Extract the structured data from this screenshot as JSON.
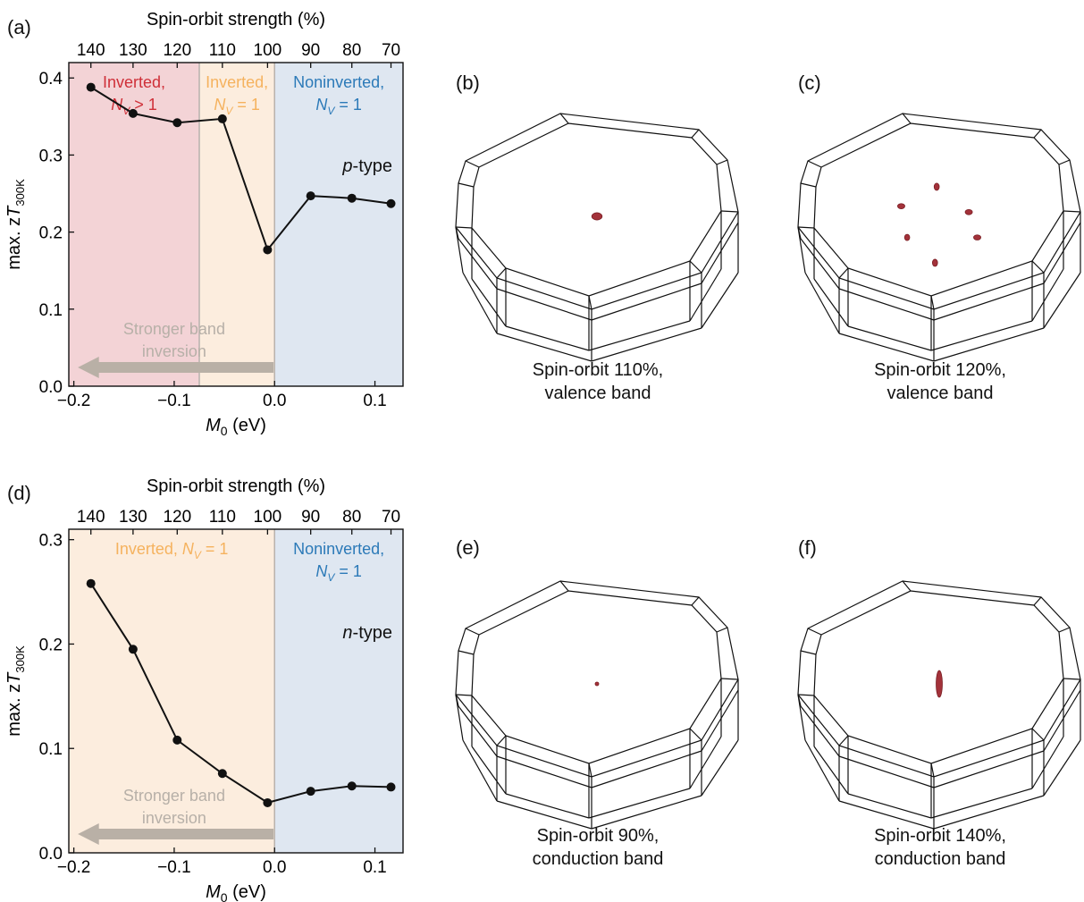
{
  "panel_labels": {
    "a": "(a)",
    "b": "(b)",
    "c": "(c)",
    "d": "(d)",
    "e": "(e)",
    "f": "(f)"
  },
  "chart_data": [
    {
      "panel": "(a)",
      "type": "line",
      "xlabel": "M",
      "xlabel_sub": "0",
      "xlabel_unit": " (eV)",
      "ylabel": "max. zT",
      "ylabel_sub": "300K",
      "top_xlabel": "Spin-orbit strength (%)",
      "top_ticks": [
        "140",
        "130",
        "120",
        "110",
        "100",
        "90",
        "80",
        "70"
      ],
      "x_ticks": [
        "−0.2",
        "−0.1",
        "0.0",
        "0.1"
      ],
      "y_ticks": [
        "0.0",
        "0.1",
        "0.2",
        "0.3",
        "0.4"
      ],
      "xlim": [
        -0.205,
        0.128
      ],
      "ylim": [
        0,
        0.42
      ],
      "series": [
        {
          "x": [
            -0.183,
            -0.141,
            -0.097,
            -0.052,
            -0.007,
            0.036,
            0.077,
            0.116
          ],
          "y": [
            0.388,
            0.354,
            0.342,
            0.347,
            0.177,
            0.247,
            0.244,
            0.237
          ]
        }
      ],
      "regions": [
        {
          "x0": -0.205,
          "x1": -0.075,
          "color": "#f3d3d6",
          "line1": "Inverted,",
          "sym": "N",
          "sub": "V",
          "rest": " > 1",
          "text_color": "#cf2f38"
        },
        {
          "x0": -0.075,
          "x1": 0.0,
          "color": "#fcedde",
          "line1": "Inverted,",
          "sym": "N",
          "sub": "V",
          "rest": " = 1",
          "text_color": "#f5b25e"
        },
        {
          "x0": 0.0,
          "x1": 0.128,
          "color": "#dfe7f1",
          "line1": "Noninverted,",
          "sym": "N",
          "sub": "V",
          "rest": " = 1",
          "text_color": "#2c7ab8"
        }
      ],
      "carrier_italic": "p",
      "carrier_rest": "-type",
      "arrow_text": [
        "Stronger band",
        "inversion"
      ]
    },
    {
      "panel": "(d)",
      "type": "line",
      "xlabel": "M",
      "xlabel_sub": "0",
      "xlabel_unit": " (eV)",
      "ylabel": "max. zT",
      "ylabel_sub": "300K",
      "top_xlabel": "Spin-orbit strength (%)",
      "top_ticks": [
        "140",
        "130",
        "120",
        "110",
        "100",
        "90",
        "80",
        "70"
      ],
      "x_ticks": [
        "−0.2",
        "−0.1",
        "0.0",
        "0.1"
      ],
      "y_ticks": [
        "0.0",
        "0.1",
        "0.2",
        "0.3"
      ],
      "xlim": [
        -0.205,
        0.128
      ],
      "ylim": [
        0,
        0.31
      ],
      "series": [
        {
          "x": [
            -0.183,
            -0.141,
            -0.097,
            -0.052,
            -0.007,
            0.036,
            0.077,
            0.116
          ],
          "y": [
            0.258,
            0.195,
            0.108,
            0.076,
            0.048,
            0.059,
            0.064,
            0.063
          ]
        }
      ],
      "regions": [
        {
          "x0": -0.205,
          "x1": 0.0,
          "color": "#fcedde",
          "line1": "Inverted, ",
          "sym": "N",
          "sub": "V",
          "rest": " = 1",
          "text_color": "#f5b25e",
          "one_line": true
        },
        {
          "x0": 0.0,
          "x1": 0.128,
          "color": "#dfe7f1",
          "line1": "Noninverted,",
          "sym": "N",
          "sub": "V",
          "rest": " = 1",
          "text_color": "#2c7ab8"
        }
      ],
      "carrier_italic": "n",
      "carrier_rest": "-type",
      "arrow_text": [
        "Stronger band",
        "inversion"
      ]
    }
  ],
  "pockets": {
    "b": {
      "caption": [
        "Spin-orbit 110%,",
        "valence band"
      ],
      "blobs": [
        [
          0,
          0,
          0.1,
          0.07
        ]
      ]
    },
    "c": {
      "caption": [
        "Spin-orbit 120%,",
        "valence band"
      ],
      "blobs": [
        [
          -0.45,
          -0.12,
          0.07,
          0.05
        ],
        [
          -0.03,
          -0.35,
          0.05,
          0.07
        ],
        [
          0.35,
          -0.05,
          0.07,
          0.05
        ],
        [
          0.45,
          0.25,
          0.07,
          0.05
        ],
        [
          -0.05,
          0.55,
          0.05,
          0.07
        ],
        [
          -0.38,
          0.25,
          0.05,
          0.06
        ]
      ]
    },
    "e": {
      "caption": [
        "Spin-orbit 90%,",
        "conduction band"
      ],
      "blobs": [
        [
          0,
          0,
          0.035,
          0.035
        ]
      ]
    },
    "f": {
      "caption": [
        "Spin-orbit 140%,",
        "conduction band"
      ],
      "blobs": [
        [
          0,
          0,
          0.06,
          0.26
        ]
      ]
    }
  },
  "colors": {
    "pocket": "#a3323a",
    "pocket_edge": "#7a1e24",
    "line": "#111111",
    "arrow": "#b9b0a6",
    "arrow_text": "#b7b0a8"
  }
}
